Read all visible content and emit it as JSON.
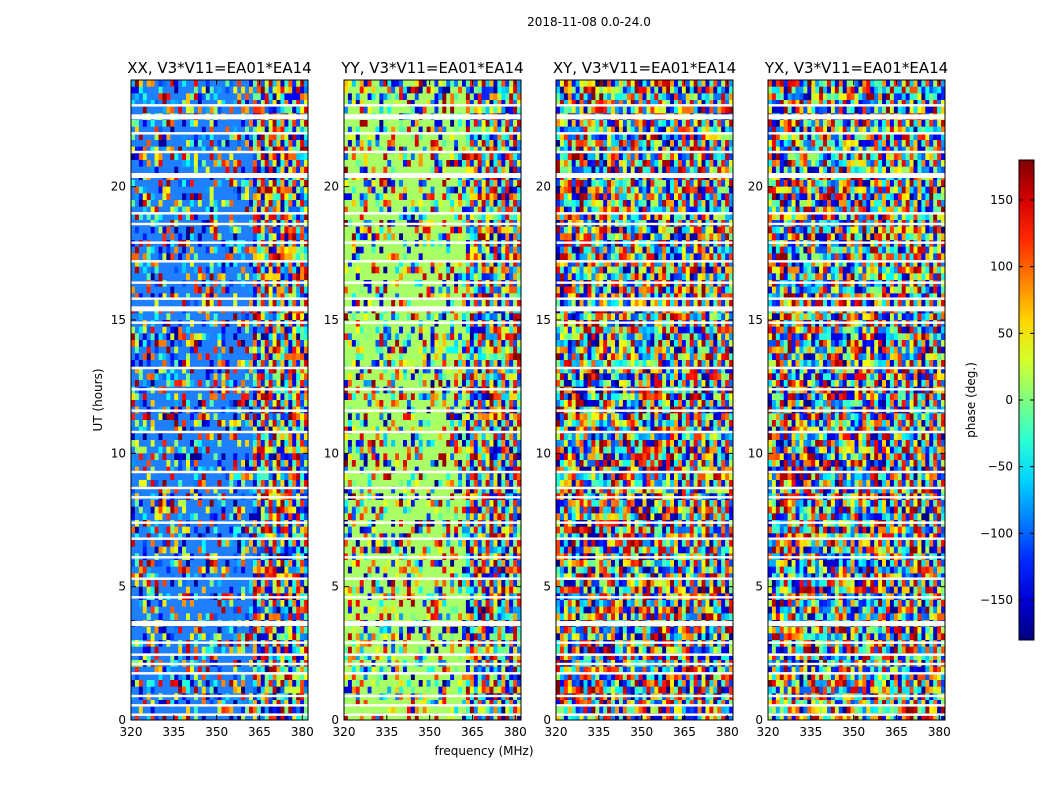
{
  "figure": {
    "suptitle": "2018-11-08 0.0-24.0"
  },
  "chart_data": {
    "type": "heatmap",
    "title": "2018-11-08 0.0-24.0",
    "xlabel": "frequency (MHz)",
    "ylabel": "UT (hours)",
    "xlim": [
      320,
      382
    ],
    "ylim": [
      0,
      24
    ],
    "x_ticks": [
      320,
      335,
      350,
      365,
      380
    ],
    "y_ticks": [
      0,
      5,
      10,
      15,
      20
    ],
    "colorbar": {
      "label": "phase (deg.)",
      "range": [
        -180,
        180
      ],
      "ticks": [
        -150,
        -100,
        -50,
        0,
        50,
        100,
        150
      ],
      "colormap": "jet",
      "colors": [
        "#00008f",
        "#0000ff",
        "#00ffff",
        "#80ff80",
        "#ffff00",
        "#ff0000",
        "#800000"
      ]
    },
    "panels": [
      {
        "title": "XX, V3*V11=EA01*EA14",
        "polarization": "XX",
        "low_freq_fill_color": "#1e7fff",
        "low_freq_fill_until_mhz": 363
      },
      {
        "title": "YY, V3*V11=EA01*EA14",
        "polarization": "YY",
        "low_freq_fill_color": "#a8ff66",
        "low_freq_fill_until_mhz": 363
      },
      {
        "title": "XY, V3*V11=EA01*EA14",
        "polarization": "XY",
        "low_freq_fill_color": null,
        "low_freq_fill_until_mhz": null
      },
      {
        "title": "YX, V3*V11=EA01*EA14",
        "polarization": "YX",
        "low_freq_fill_color": null,
        "low_freq_fill_until_mhz": null
      }
    ],
    "flagged_ut_hours": [
      0.2,
      0.55,
      0.9,
      1.75,
      2.1,
      2.45,
      2.9,
      3.6,
      4.6,
      5.3,
      6.1,
      6.8,
      7.4,
      8.35,
      8.7,
      9.3,
      10.8,
      11.6,
      12.4,
      13.2,
      14.9,
      15.4,
      15.8,
      16.4,
      17.2,
      17.9,
      18.6,
      19.0,
      20.4,
      21.3,
      22.0,
      22.6,
      23.05
    ]
  }
}
